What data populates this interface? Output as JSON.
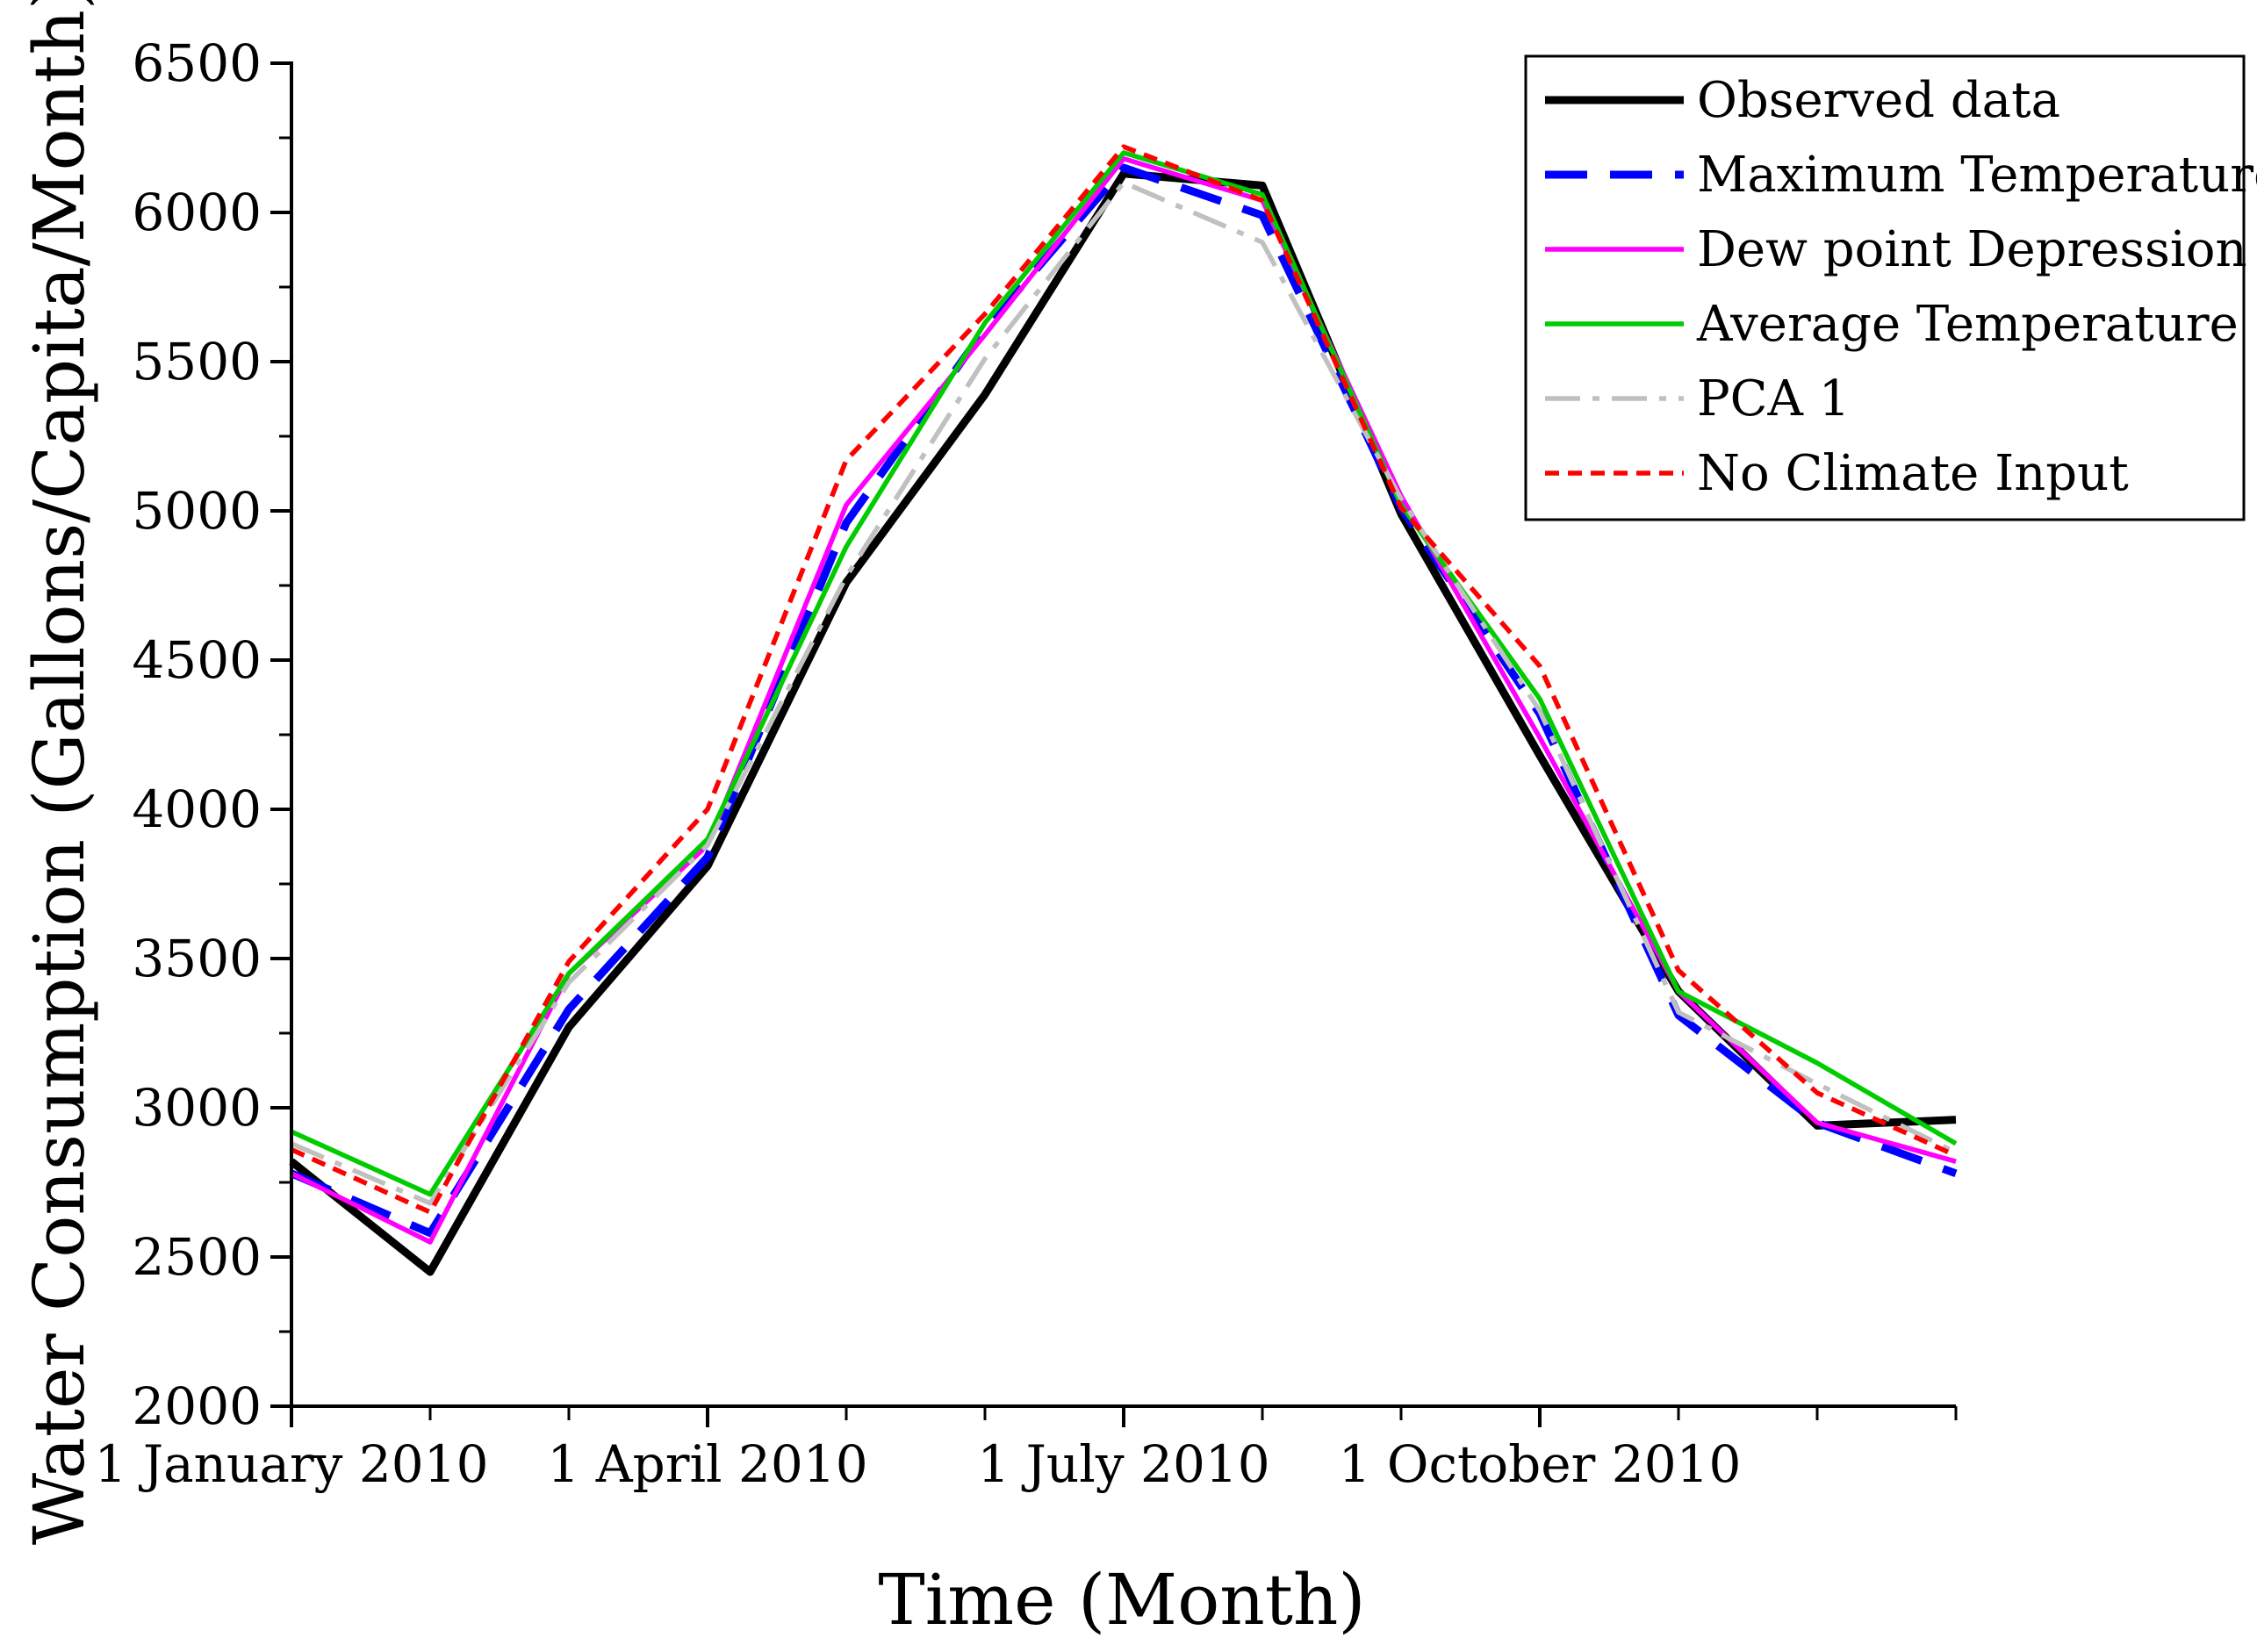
{
  "chart_data": {
    "type": "line",
    "title": "",
    "xlabel": "Time (Month)",
    "ylabel": "Water Consumption (Gallons/Capita/Month)",
    "ylim": [
      2000,
      6500
    ],
    "yticks": [
      2000,
      2500,
      3000,
      3500,
      4000,
      4500,
      5000,
      5500,
      6000,
      6500
    ],
    "ytick_labels": [
      "2000",
      "2500",
      "3000",
      "3500",
      "4000",
      "4500",
      "5000",
      "5500",
      "6000",
      "6500"
    ],
    "x": [
      1,
      2,
      3,
      4,
      5,
      6,
      7,
      8,
      9,
      10,
      11,
      12,
      13
    ],
    "xlim": [
      1,
      13
    ],
    "xticks_major": [
      1,
      4,
      7,
      10
    ],
    "xtick_labels": [
      "1 January 2010",
      "1 April 2010",
      "1 July 2010",
      "1 October 2010"
    ],
    "grid": false,
    "legend_position": "top-right",
    "series": [
      {
        "name": "Observed data",
        "color": "#000000",
        "style": "solid",
        "values": [
          2820,
          2450,
          3270,
          3810,
          4760,
          5390,
          6130,
          6090,
          4990,
          4180,
          3390,
          2940,
          2960
        ]
      },
      {
        "name": "Maximum Temperature",
        "color": "#0000ff",
        "style": "dash",
        "values": [
          2780,
          2580,
          3330,
          3840,
          4960,
          5610,
          6150,
          5990,
          5010,
          4320,
          3310,
          2950,
          2780
        ]
      },
      {
        "name": "Dew point Depression",
        "color": "#ff00ff",
        "style": "solid",
        "values": [
          2780,
          2550,
          3450,
          3880,
          5020,
          5590,
          6180,
          6040,
          5050,
          4240,
          3390,
          2950,
          2820
        ]
      },
      {
        "name": "Average Temperature",
        "color": "#00cc00",
        "style": "solid",
        "values": [
          2920,
          2710,
          3450,
          3900,
          4880,
          5630,
          6200,
          6060,
          5020,
          4370,
          3390,
          3150,
          2880
        ]
      },
      {
        "name": "PCA 1",
        "color": "#c0c0c0",
        "style": "dashdot",
        "values": [
          2880,
          2680,
          3420,
          3880,
          4780,
          5510,
          6100,
          5900,
          5040,
          4330,
          3320,
          3080,
          2850
        ]
      },
      {
        "name": "No Climate Input",
        "color": "#ff0000",
        "style": "dot",
        "values": [
          2860,
          2650,
          3490,
          4000,
          5170,
          5660,
          6220,
          6040,
          5010,
          4480,
          3460,
          3050,
          2840
        ]
      }
    ]
  }
}
